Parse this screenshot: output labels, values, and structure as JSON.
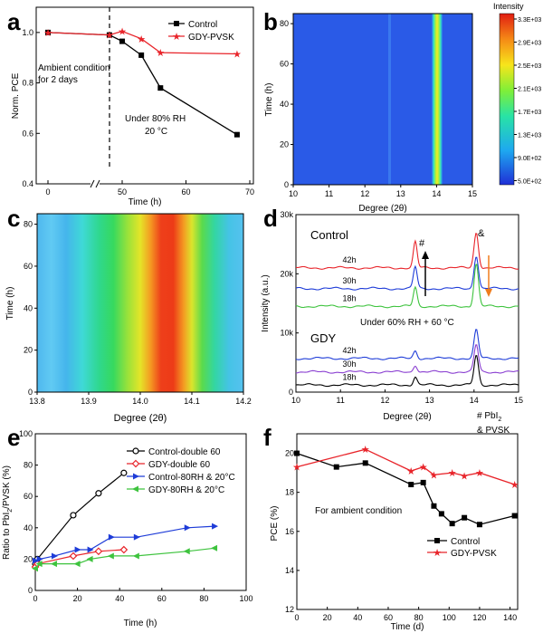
{
  "colors": {
    "black": "#000000",
    "red": "#e8242a",
    "blue": "#1e3cd8",
    "green": "#3ec33e",
    "purple": "#8a3fd1",
    "orange": "#f07c1c",
    "navy": "#1a1a9e"
  },
  "chart_data": [
    {
      "panel": "a",
      "type": "line",
      "xlabel": "Time (h)",
      "ylabel": "Norm. PCE",
      "x_ticks": [
        "0",
        "50",
        "60",
        "70"
      ],
      "y_ticks": [
        "0.4",
        "0.6",
        "0.8",
        "1.0"
      ],
      "ylim": [
        0.4,
        1.1
      ],
      "x_break": true,
      "annotations": [
        "Ambient condition",
        "for 2 days",
        "Under 80% RH",
        "20 °C"
      ],
      "legend_position": "top-right",
      "series": [
        {
          "name": "Control",
          "color": "#000000",
          "marker": "square",
          "x": [
            0,
            48,
            50,
            53,
            56,
            68
          ],
          "y": [
            1.0,
            0.99,
            0.965,
            0.91,
            0.78,
            0.595
          ]
        },
        {
          "name": "GDY-PVSK",
          "color": "#e8242a",
          "marker": "star",
          "x": [
            0,
            48,
            50,
            53,
            56,
            68
          ],
          "y": [
            1.0,
            0.99,
            1.005,
            0.975,
            0.92,
            0.915
          ]
        }
      ]
    },
    {
      "panel": "b",
      "type": "heatmap",
      "xlabel": "Degree (2θ)",
      "ylabel": "Time (h)",
      "xlim": [
        10,
        15
      ],
      "ylim": [
        0,
        85
      ],
      "x_ticks": [
        "10",
        "11",
        "12",
        "13",
        "14",
        "15"
      ],
      "y_ticks": [
        "0",
        "20",
        "40",
        "60",
        "80"
      ],
      "colorbar_title": "Intensity",
      "colorbar_labels": [
        "3.3E+03",
        "2.9E+03",
        "2.5E+03",
        "2.1E+03",
        "1.7E+03",
        "1.3E+03",
        "9.0E+02",
        "5.0E+02"
      ],
      "peaks": [
        {
          "x": 14.05,
          "width": 0.15,
          "intensity": "high"
        },
        {
          "x": 12.65,
          "width": 0.04,
          "intensity": "low"
        }
      ]
    },
    {
      "panel": "c",
      "type": "heatmap",
      "xlabel": "Degree (2θ)",
      "ylabel": "Time (h)",
      "xlim": [
        13.8,
        14.2
      ],
      "ylim": [
        0,
        85
      ],
      "x_ticks": [
        "13.8",
        "13.9",
        "14.0",
        "14.1",
        "14.2"
      ],
      "y_ticks": [
        "0",
        "20",
        "40",
        "60",
        "80"
      ],
      "peak_center": 14.05
    },
    {
      "panel": "d",
      "type": "line",
      "xlabel": "Degree (2θ)",
      "ylabel": "Intensity (a.u.)",
      "xlim": [
        10,
        15
      ],
      "ylim": [
        0,
        30000
      ],
      "x_ticks": [
        "10",
        "11",
        "12",
        "13",
        "14",
        "15"
      ],
      "y_ticks": [
        "0",
        "10k",
        "20k",
        "30k"
      ],
      "group_labels": [
        "Control",
        "GDY"
      ],
      "annotations": [
        "Under 60% RH + 60 °C",
        "#",
        "&"
      ],
      "legend_note_1": "# PbI",
      "legend_note_sub": "2",
      "legend_note_2": "& PVSK",
      "series": [
        {
          "name": "42h",
          "group": "Control",
          "color": "#e8242a",
          "baseline": 21000,
          "peaks": [
            4400,
            6000
          ]
        },
        {
          "name": "30h",
          "group": "Control",
          "color": "#1e3cd8",
          "baseline": 17500,
          "peaks": [
            3700,
            5600
          ]
        },
        {
          "name": "18h",
          "group": "Control",
          "color": "#3ec33e",
          "baseline": 14500,
          "peaks": [
            3200,
            7200
          ]
        },
        {
          "name": "42h",
          "group": "GDY",
          "color": "#1e3cd8",
          "baseline": 5700,
          "peaks": [
            1300,
            4800
          ]
        },
        {
          "name": "30h",
          "group": "GDY",
          "color": "#8a3fd1",
          "baseline": 3400,
          "peaks": [
            1200,
            4600
          ]
        },
        {
          "name": "18h",
          "group": "GDY",
          "color": "#000000",
          "baseline": 1200,
          "peaks": [
            1400,
            5000
          ]
        }
      ]
    },
    {
      "panel": "e",
      "type": "line",
      "xlabel": "Time (h)",
      "ylabel_1": "Ratio to PbI",
      "ylabel_sub": "2",
      "ylabel_2": "/PVSK (%)",
      "xlim": [
        0,
        100
      ],
      "ylim": [
        0,
        100
      ],
      "x_ticks": [
        "0",
        "20",
        "40",
        "60",
        "80",
        "100"
      ],
      "y_ticks": [
        "0",
        "20",
        "40",
        "60",
        "80",
        "100"
      ],
      "legend_position": "top-right",
      "series": [
        {
          "name": "Control-double 60",
          "color": "#000000",
          "marker": "circle",
          "x": [
            0,
            1,
            18,
            30,
            42
          ],
          "y": [
            17,
            20,
            48,
            62,
            75
          ]
        },
        {
          "name": "GDY-double 60",
          "color": "#e8242a",
          "marker": "diamond",
          "x": [
            0,
            1,
            18,
            30,
            42
          ],
          "y": [
            15,
            17,
            22,
            25,
            26
          ]
        },
        {
          "name": "Control-80RH & 20°C",
          "color": "#1e3cd8",
          "marker": "triangle-right",
          "x": [
            0,
            2,
            9,
            20,
            26,
            36,
            48,
            72,
            85
          ],
          "y": [
            19,
            20,
            22,
            26,
            26,
            34,
            34,
            40,
            41
          ]
        },
        {
          "name": "GDY-80RH & 20°C",
          "color": "#3ec33e",
          "marker": "triangle-left",
          "x": [
            0,
            2,
            9,
            20,
            26,
            36,
            48,
            72,
            85
          ],
          "y": [
            14,
            17,
            17,
            17,
            20,
            22,
            22,
            25,
            27
          ]
        }
      ]
    },
    {
      "panel": "f",
      "type": "line",
      "xlabel": "Time (d)",
      "ylabel": "PCE (%)",
      "xlim": [
        0,
        145
      ],
      "ylim": [
        12,
        21
      ],
      "x_ticks": [
        "0",
        "20",
        "40",
        "60",
        "80",
        "100",
        "120",
        "140"
      ],
      "y_ticks": [
        "12",
        "14",
        "16",
        "18",
        "20"
      ],
      "annotation": "For ambient condition",
      "legend_position": "bottom-right",
      "series": [
        {
          "name": "Control",
          "color": "#000000",
          "marker": "square",
          "x": [
            0,
            26,
            45,
            75,
            83,
            90,
            95,
            102,
            110,
            120,
            143
          ],
          "y": [
            20.0,
            19.3,
            19.5,
            18.4,
            18.5,
            17.3,
            16.9,
            16.4,
            16.7,
            16.35,
            16.8
          ]
        },
        {
          "name": "GDY-PVSK",
          "color": "#e8242a",
          "marker": "star",
          "x": [
            0,
            45,
            75,
            83,
            90,
            102,
            110,
            120,
            143
          ],
          "y": [
            19.3,
            20.2,
            19.1,
            19.3,
            18.9,
            19.0,
            18.85,
            19.0,
            18.4
          ]
        }
      ]
    }
  ],
  "panel_labels": [
    "a",
    "b",
    "c",
    "d",
    "e",
    "f"
  ]
}
